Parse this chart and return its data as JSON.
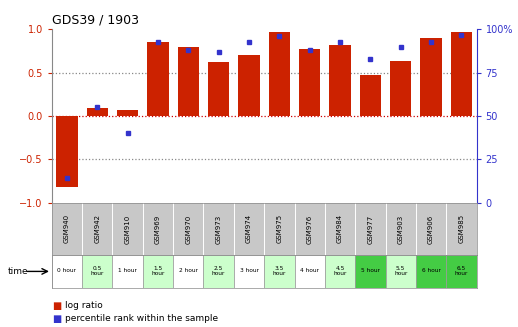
{
  "title": "GDS39 / 1903",
  "samples": [
    "GSM940",
    "GSM942",
    "GSM910",
    "GSM969",
    "GSM970",
    "GSM973",
    "GSM974",
    "GSM975",
    "GSM976",
    "GSM984",
    "GSM977",
    "GSM903",
    "GSM906",
    "GSM985"
  ],
  "time_labels": [
    "0 hour",
    "0.5\nhour",
    "1 hour",
    "1.5\nhour",
    "2 hour",
    "2.5\nhour",
    "3 hour",
    "3.5\nhour",
    "4 hour",
    "4.5\nhour",
    "5 hour",
    "5.5\nhour",
    "6 hour",
    "6.5\nhour"
  ],
  "log_ratio": [
    -0.82,
    0.09,
    0.07,
    0.86,
    0.8,
    0.62,
    0.71,
    0.97,
    0.77,
    0.82,
    0.47,
    0.63,
    0.9,
    0.97
  ],
  "percentile": [
    14,
    55,
    40,
    93,
    88,
    87,
    93,
    96,
    88,
    93,
    83,
    90,
    93,
    97
  ],
  "bar_color": "#cc2200",
  "dot_color": "#3333cc",
  "time_colors_bg": [
    "#ffffff",
    "#ccffcc",
    "#ffffff",
    "#ccffcc",
    "#ffffff",
    "#ccffcc",
    "#ffffff",
    "#ccffcc",
    "#ffffff",
    "#ccffcc",
    "#44cc44",
    "#ccffcc",
    "#44cc44",
    "#44cc44"
  ],
  "gsm_bg": "#c8c8c8",
  "ylim": [
    -1.0,
    1.0
  ],
  "yticks_left": [
    -1.0,
    -0.5,
    0.0,
    0.5,
    1.0
  ],
  "yticks_right_labels": [
    "0",
    "25",
    "50",
    "75",
    "100%"
  ],
  "yticks_right_vals": [
    0,
    25,
    50,
    75,
    100
  ],
  "hlines": [
    -0.5,
    0.0,
    0.5
  ],
  "hline_color_zero": "#cc0000",
  "hline_color_other": "#888888"
}
